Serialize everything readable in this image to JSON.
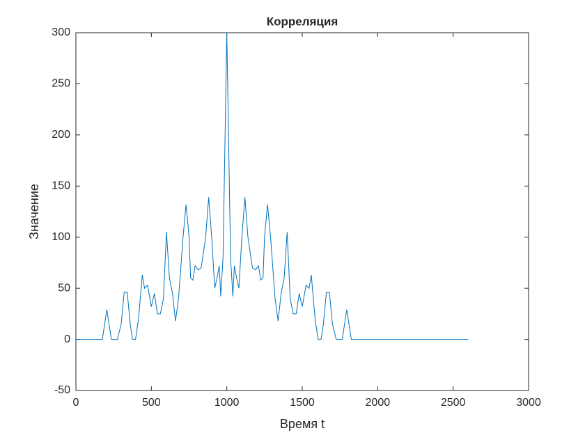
{
  "chart_data": {
    "type": "line",
    "title": "Корреляция",
    "xlabel": "Время t",
    "ylabel": "Значение",
    "x": [
      0,
      175,
      205,
      235,
      275,
      300,
      320,
      340,
      360,
      375,
      395,
      415,
      440,
      455,
      475,
      500,
      520,
      540,
      560,
      580,
      600,
      620,
      640,
      660,
      680,
      710,
      730,
      750,
      760,
      775,
      790,
      810,
      830,
      860,
      880,
      900,
      920,
      935,
      950,
      960,
      975,
      1000,
      1025,
      1040,
      1050,
      1065,
      1080,
      1100,
      1120,
      1140,
      1170,
      1190,
      1210,
      1225,
      1240,
      1250,
      1270,
      1290,
      1320,
      1340,
      1360,
      1380,
      1400,
      1420,
      1440,
      1460,
      1480,
      1500,
      1525,
      1545,
      1560,
      1585,
      1605,
      1625,
      1640,
      1660,
      1680,
      1700,
      1725,
      1765,
      1795,
      1825,
      2600
    ],
    "series": [
      {
        "name": "Корреляция",
        "color": "#0072bd",
        "values": [
          0,
          0,
          29,
          0,
          0,
          15,
          46,
          46,
          15,
          0,
          0,
          20,
          63,
          50,
          53,
          32,
          45,
          25,
          25,
          40,
          105,
          60,
          45,
          18,
          40,
          100,
          132,
          100,
          60,
          58,
          72,
          68,
          70,
          100,
          139,
          100,
          50,
          60,
          72,
          42,
          80,
          300,
          80,
          42,
          72,
          60,
          50,
          100,
          139,
          100,
          70,
          68,
          72,
          58,
          60,
          100,
          132,
          100,
          40,
          18,
          45,
          60,
          105,
          40,
          25,
          25,
          45,
          32,
          53,
          50,
          63,
          20,
          0,
          0,
          15,
          46,
          46,
          15,
          0,
          0,
          29,
          0,
          0
        ]
      }
    ],
    "xlim": [
      0,
      3000
    ],
    "xticks": [
      0,
      500,
      1000,
      1500,
      2000,
      2500,
      3000
    ],
    "ylim": [
      -50,
      300
    ],
    "yticks": [
      -50,
      0,
      50,
      100,
      150,
      200,
      250,
      300
    ]
  }
}
